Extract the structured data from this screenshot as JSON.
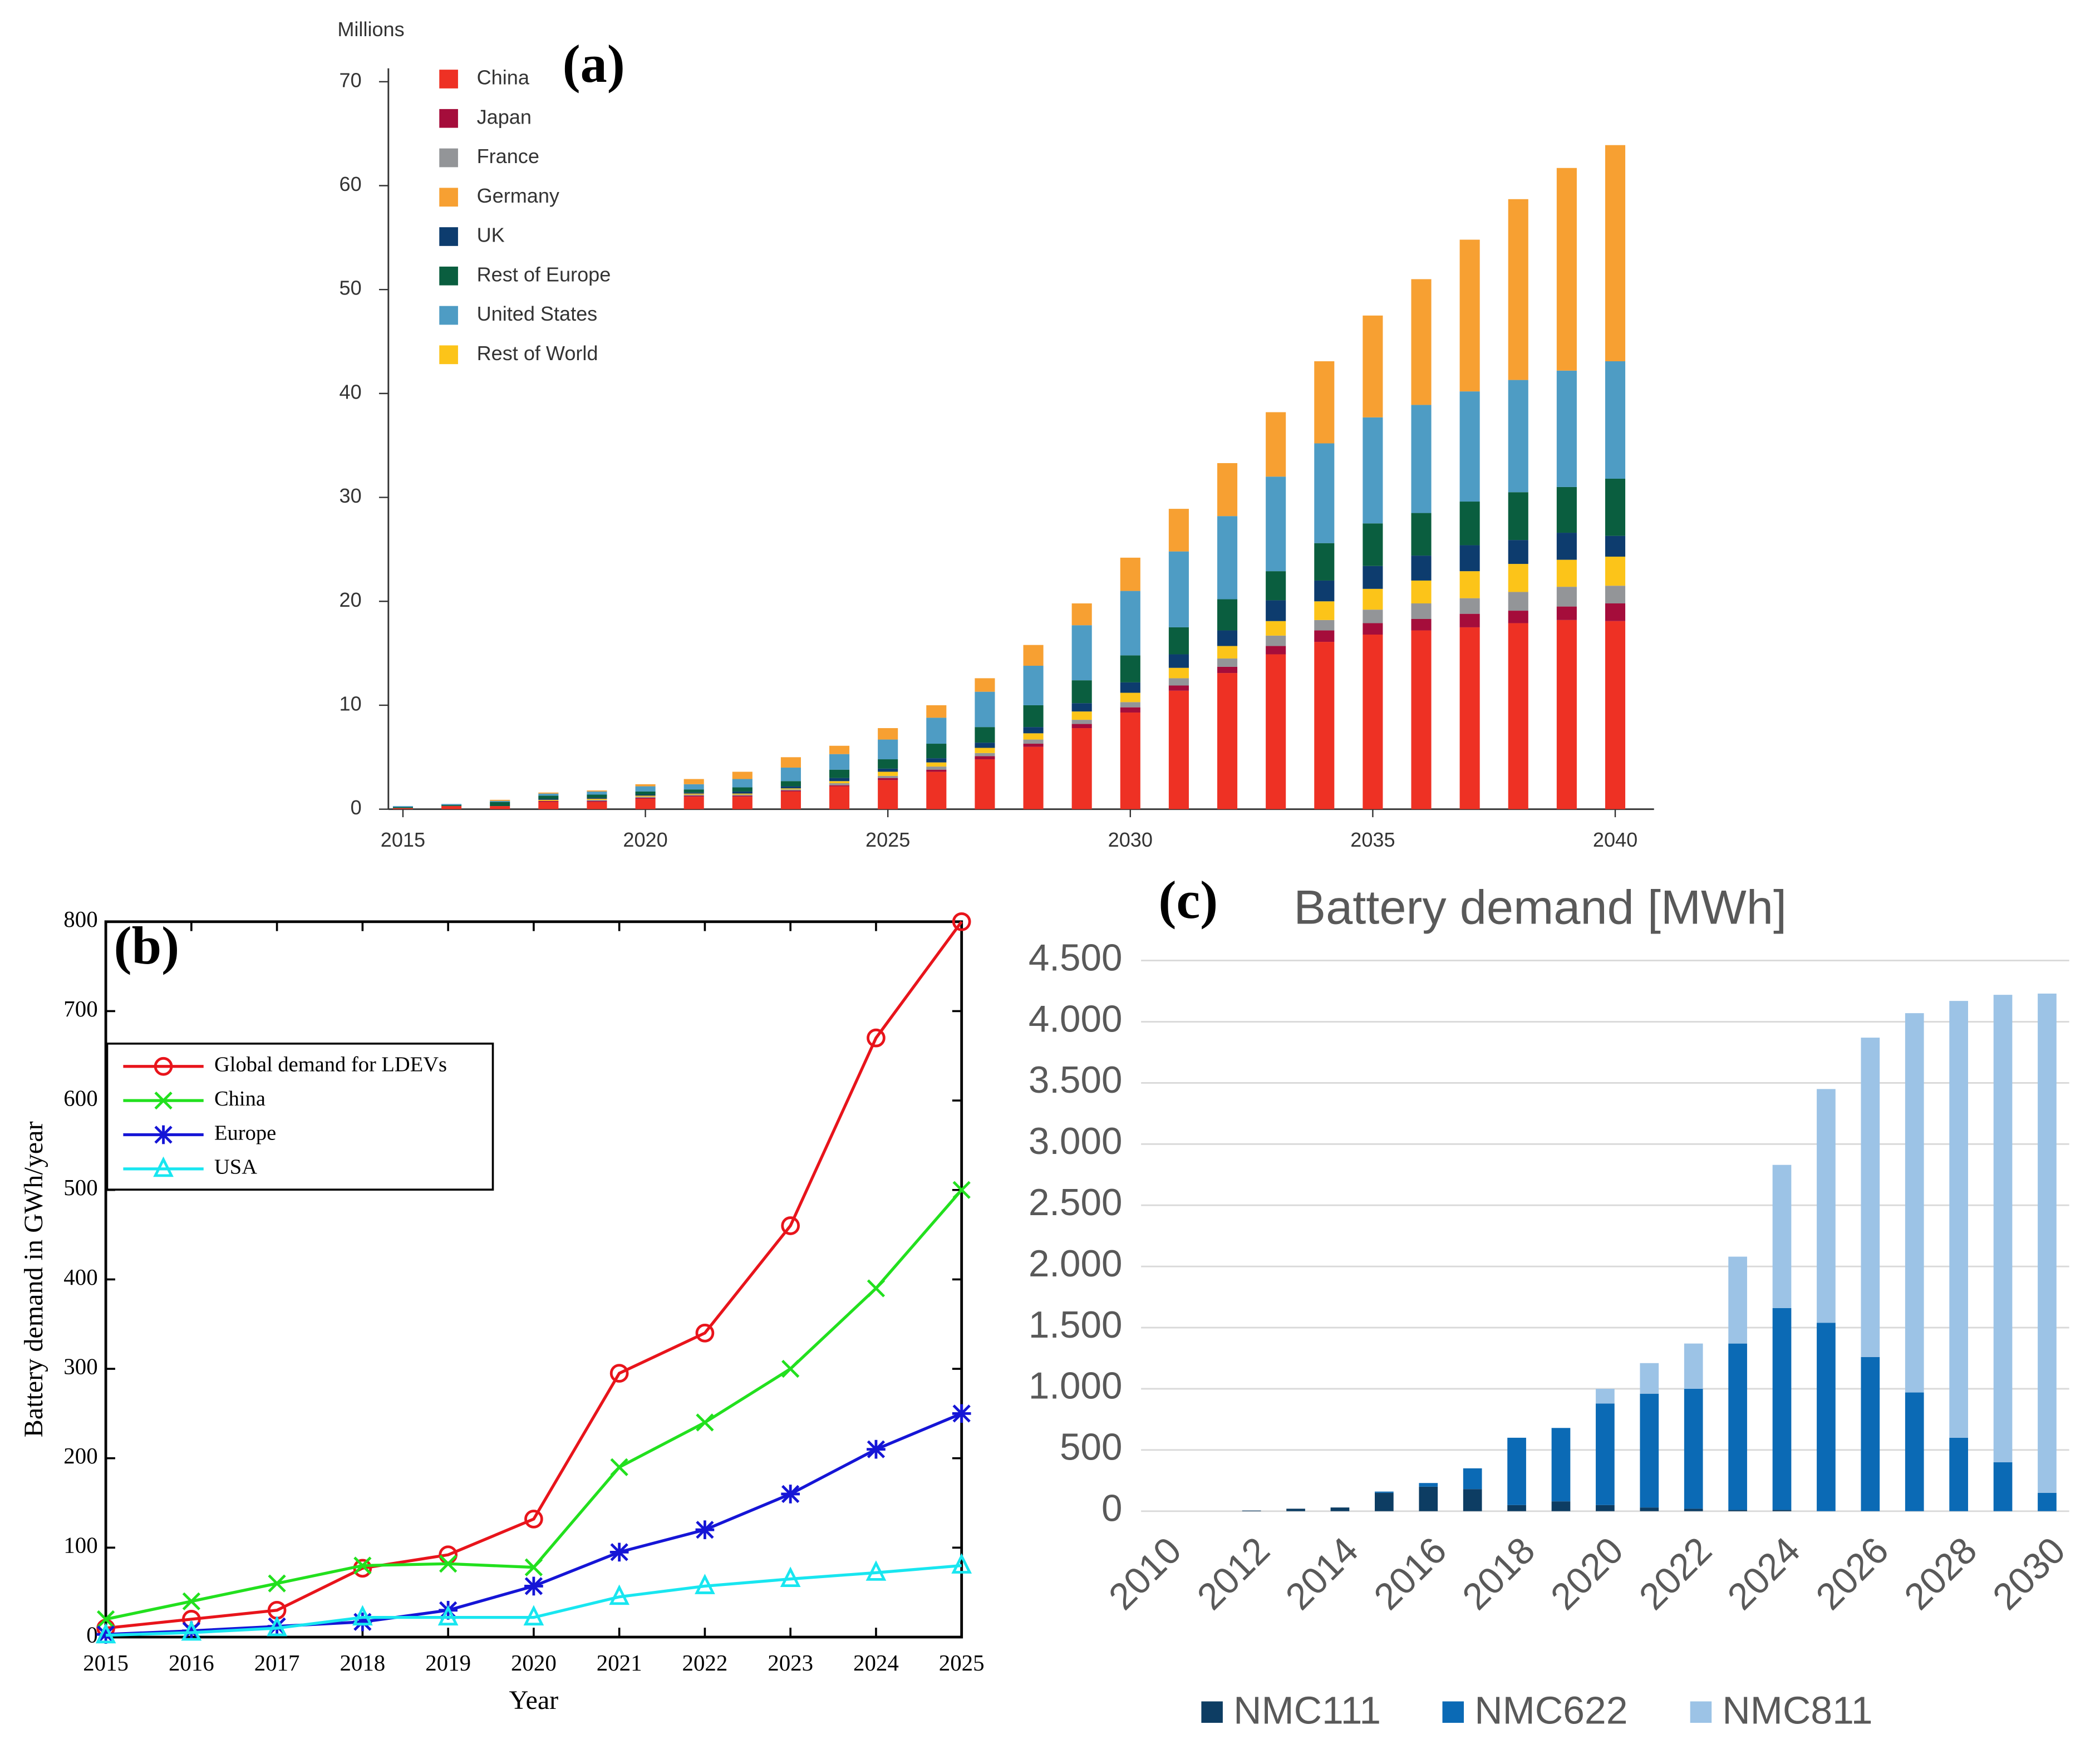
{
  "chart_data": [
    {
      "type": "bar",
      "stacked": true,
      "panel_label": "(a)",
      "ylabel": "Millions",
      "x": [
        2015,
        2016,
        2017,
        2018,
        2019,
        2020,
        2021,
        2022,
        2023,
        2024,
        2025,
        2026,
        2027,
        2028,
        2029,
        2030,
        2031,
        2032,
        2033,
        2034,
        2035,
        2036,
        2037,
        2038,
        2039,
        2040
      ],
      "xlim": [
        2014.7,
        2040.8
      ],
      "xticks": [
        2015,
        2020,
        2025,
        2030,
        2035,
        2040
      ],
      "ylim": [
        0,
        70
      ],
      "yticks": [
        0,
        10,
        20,
        30,
        40,
        50,
        60,
        70
      ],
      "legend": "upper left",
      "stack_order": [
        0,
        1,
        2,
        7,
        4,
        5,
        6,
        3
      ],
      "series": [
        {
          "name": "China",
          "color": "#ee3124",
          "values": [
            0.1,
            0.3,
            0.3,
            0.7,
            0.7,
            1.0,
            1.2,
            1.2,
            1.7,
            2.2,
            2.8,
            3.6,
            4.8,
            6.0,
            7.8,
            9.3,
            11.4,
            13.1,
            14.9,
            16.1,
            16.8,
            17.2,
            17.5,
            17.9,
            18.2,
            18.1
          ]
        },
        {
          "name": "Japan",
          "color": "#a50d3b",
          "values": [
            0,
            0,
            0,
            0.1,
            0.1,
            0.1,
            0.1,
            0.1,
            0.1,
            0.1,
            0.2,
            0.2,
            0.3,
            0.3,
            0.4,
            0.5,
            0.5,
            0.6,
            0.8,
            1.1,
            1.1,
            1.1,
            1.3,
            1.2,
            1.3,
            1.7
          ]
        },
        {
          "name": "France",
          "color": "#939598",
          "values": [
            0,
            0,
            0,
            0,
            0.1,
            0.1,
            0.1,
            0.1,
            0.1,
            0.2,
            0.2,
            0.3,
            0.3,
            0.4,
            0.4,
            0.5,
            0.7,
            0.8,
            1.0,
            1.0,
            1.3,
            1.5,
            1.5,
            1.8,
            1.9,
            1.7
          ]
        },
        {
          "name": "Germany",
          "color": "#f7a032",
          "values": [
            0,
            0,
            0.1,
            0.1,
            0.1,
            0.2,
            0.5,
            0.7,
            1.0,
            0.8,
            1.1,
            1.2,
            1.3,
            2.0,
            2.1,
            3.2,
            4.1,
            5.1,
            6.2,
            7.9,
            9.8,
            12.1,
            14.6,
            17.4,
            19.5,
            20.8
          ]
        },
        {
          "name": "UK",
          "color": "#0d3c6e",
          "values": [
            0,
            0,
            0,
            0.1,
            0.1,
            0.1,
            0.1,
            0.2,
            0.2,
            0.3,
            0.3,
            0.4,
            0.5,
            0.6,
            0.8,
            1.0,
            1.3,
            1.5,
            2.0,
            2.0,
            2.2,
            2.4,
            2.5,
            2.3,
            2.6,
            2.0
          ]
        },
        {
          "name": "Rest of Europe",
          "color": "#0a5e3f",
          "values": [
            0.1,
            0.1,
            0.4,
            0.3,
            0.3,
            0.3,
            0.3,
            0.4,
            0.5,
            0.8,
            0.9,
            1.4,
            1.5,
            2.1,
            2.2,
            2.6,
            2.6,
            3.0,
            2.8,
            3.6,
            4.1,
            4.1,
            4.2,
            4.6,
            4.4,
            5.5
          ]
        },
        {
          "name": "United States",
          "color": "#4e9cc4",
          "values": [
            0.1,
            0.1,
            0.1,
            0.2,
            0.3,
            0.5,
            0.5,
            0.8,
            1.3,
            1.5,
            1.9,
            2.5,
            3.4,
            3.8,
            5.3,
            6.2,
            7.3,
            8.0,
            9.1,
            9.6,
            10.2,
            10.4,
            10.6,
            10.8,
            11.2,
            11.3
          ]
        },
        {
          "name": "Rest of World",
          "color": "#fcc419",
          "values": [
            0,
            0,
            0,
            0.1,
            0.1,
            0.1,
            0.1,
            0.1,
            0.1,
            0.2,
            0.4,
            0.4,
            0.5,
            0.6,
            0.8,
            0.9,
            1.0,
            1.2,
            1.4,
            1.8,
            2.0,
            2.2,
            2.6,
            2.7,
            2.6,
            2.8
          ]
        }
      ]
    },
    {
      "type": "line",
      "panel_label": "(b)",
      "xlabel": "Year",
      "ylabel": "Battery demand in GWh/year",
      "x": [
        2015,
        2016,
        2017,
        2018,
        2019,
        2020,
        2021,
        2022,
        2023,
        2024,
        2025
      ],
      "xlim": [
        2015,
        2025
      ],
      "xticks": [
        2015,
        2016,
        2017,
        2018,
        2019,
        2020,
        2021,
        2022,
        2023,
        2024,
        2025
      ],
      "ylim": [
        0,
        800
      ],
      "yticks": [
        0,
        100,
        200,
        300,
        400,
        500,
        600,
        700,
        800
      ],
      "legend": "upper left",
      "series": [
        {
          "name": "Global demand for LDEVs",
          "color": "#e8141b",
          "marker": "o",
          "values": [
            10,
            20,
            30,
            77,
            92,
            132,
            295,
            340,
            460,
            670,
            800
          ]
        },
        {
          "name": "China",
          "color": "#22e01e",
          "marker": "x",
          "values": [
            20,
            40,
            60,
            80,
            82,
            78,
            190,
            240,
            300,
            390,
            500
          ]
        },
        {
          "name": "Europe",
          "color": "#1515d6",
          "marker": "*",
          "values": [
            3,
            7,
            12,
            17,
            30,
            57,
            95,
            120,
            160,
            210,
            250
          ]
        },
        {
          "name": "USA",
          "color": "#18e6f0",
          "marker": "^",
          "values": [
            2,
            5,
            10,
            22,
            22,
            22,
            45,
            57,
            65,
            72,
            80
          ]
        }
      ]
    },
    {
      "type": "bar",
      "stacked": true,
      "panel_label": "(c)",
      "title": "Battery demand [MWh]",
      "categories": [
        2010,
        null,
        2012,
        null,
        2014,
        null,
        2016,
        null,
        2018,
        null,
        2020,
        null,
        2022,
        null,
        2024,
        null,
        2026,
        null,
        2028,
        null,
        2030
      ],
      "ylim": [
        0,
        4500
      ],
      "yticks": [
        0,
        500,
        {
          "value": 1000,
          "label": "1.000"
        },
        {
          "value": 1500,
          "label": "1.500"
        },
        {
          "value": 2000,
          "label": "2.000"
        },
        {
          "value": 2500,
          "label": "2.500"
        },
        {
          "value": 3000,
          "label": "3.000"
        },
        {
          "value": 3500,
          "label": "3.500"
        },
        {
          "value": 4000,
          "label": "4.000"
        },
        {
          "value": 4500,
          "label": "4.500"
        }
      ],
      "grid": true,
      "legend": "lower center",
      "series": [
        {
          "name": "NMC111",
          "color": "#0d3d63",
          "values": [
            0,
            0,
            5,
            20,
            30,
            150,
            200,
            180,
            50,
            80,
            50,
            30,
            20,
            10,
            10,
            0,
            0,
            0,
            0,
            0,
            0
          ]
        },
        {
          "name": "NMC622",
          "color": "#0b6ab5",
          "values": [
            0,
            0,
            0,
            0,
            0,
            10,
            30,
            170,
            550,
            600,
            830,
            930,
            980,
            1360,
            1650,
            1540,
            1260,
            970,
            600,
            400,
            150
          ]
        },
        {
          "name": "NMC811",
          "color": "#9cc3e6",
          "values": [
            0,
            0,
            0,
            0,
            0,
            0,
            0,
            0,
            0,
            0,
            120,
            250,
            370,
            710,
            1170,
            1910,
            2610,
            3100,
            3570,
            3820,
            4080
          ]
        }
      ]
    }
  ]
}
